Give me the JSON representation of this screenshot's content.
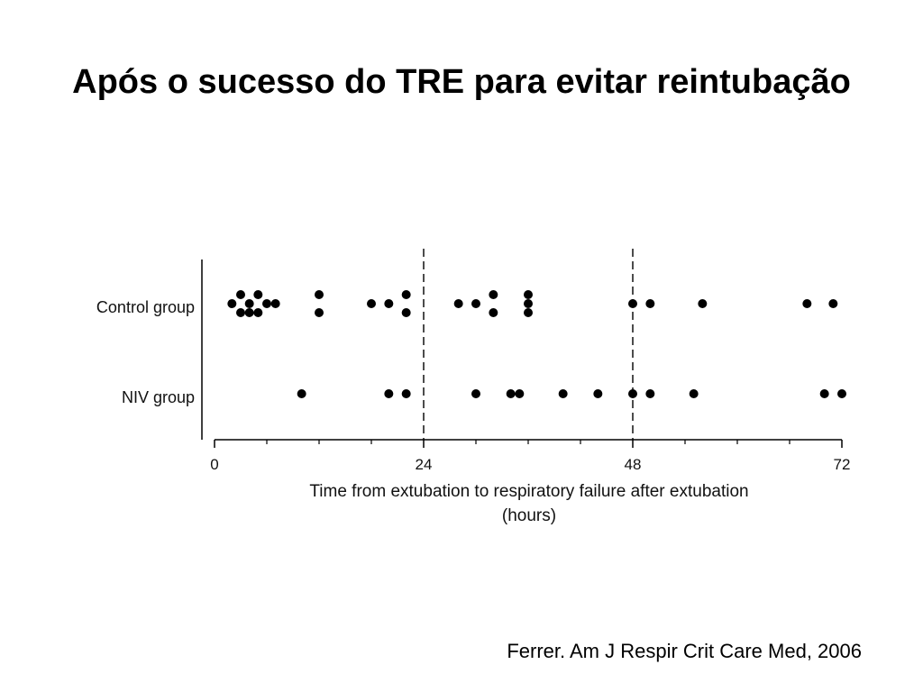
{
  "slide": {
    "title": "Após o sucesso do TRE para evitar reintubação",
    "citation": "Ferrer. Am J Respir Crit Care Med, 2006"
  },
  "chart_data": {
    "type": "scatter",
    "xlabel_line1": "Time from extubation to respiratory failure after extubation",
    "xlabel_line2": "(hours)",
    "xlim": [
      0,
      72
    ],
    "xticks": [
      0,
      24,
      48,
      72
    ],
    "minor_tick_step": 6,
    "reference_lines": [
      24,
      48
    ],
    "grid": false,
    "categories": [
      "Control group",
      "NIV group"
    ],
    "series": [
      {
        "name": "Control group",
        "points": [
          {
            "x": 2,
            "level": 0
          },
          {
            "x": 3,
            "level": 1
          },
          {
            "x": 3,
            "level": -1
          },
          {
            "x": 4,
            "level": 0
          },
          {
            "x": 4,
            "level": -1
          },
          {
            "x": 5,
            "level": 1
          },
          {
            "x": 5,
            "level": -1
          },
          {
            "x": 6,
            "level": 0
          },
          {
            "x": 7,
            "level": 0
          },
          {
            "x": 12,
            "level": 1
          },
          {
            "x": 12,
            "level": -1
          },
          {
            "x": 18,
            "level": 0
          },
          {
            "x": 20,
            "level": 0
          },
          {
            "x": 22,
            "level": 1
          },
          {
            "x": 22,
            "level": -1
          },
          {
            "x": 28,
            "level": 0
          },
          {
            "x": 30,
            "level": 0
          },
          {
            "x": 32,
            "level": 1
          },
          {
            "x": 32,
            "level": -1
          },
          {
            "x": 36,
            "level": 1
          },
          {
            "x": 36,
            "level": 0
          },
          {
            "x": 36,
            "level": -1
          },
          {
            "x": 48,
            "level": 0
          },
          {
            "x": 50,
            "level": 0
          },
          {
            "x": 56,
            "level": 0
          },
          {
            "x": 68,
            "level": 0
          },
          {
            "x": 71,
            "level": 0
          }
        ]
      },
      {
        "name": "NIV group",
        "points": [
          {
            "x": 10,
            "level": 0
          },
          {
            "x": 20,
            "level": 0
          },
          {
            "x": 22,
            "level": 0
          },
          {
            "x": 30,
            "level": 0
          },
          {
            "x": 34,
            "level": 0
          },
          {
            "x": 35,
            "level": 0
          },
          {
            "x": 40,
            "level": 0
          },
          {
            "x": 44,
            "level": 0
          },
          {
            "x": 48,
            "level": 0
          },
          {
            "x": 50,
            "level": 0
          },
          {
            "x": 55,
            "level": 0
          },
          {
            "x": 70,
            "level": 0
          },
          {
            "x": 72,
            "level": 0
          }
        ]
      }
    ]
  }
}
